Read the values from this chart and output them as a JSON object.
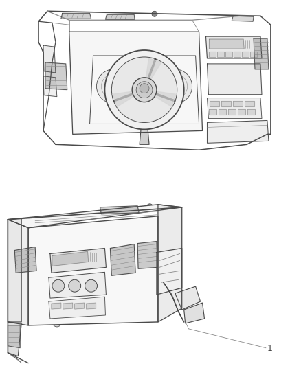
{
  "background_color": "#ffffff",
  "label_number": "1",
  "label_fontsize": 9,
  "fig_width": 4.38,
  "fig_height": 5.33,
  "dpi": 100,
  "line_color": "#4a4a4a",
  "light_color": "#888888",
  "fill_gray": "#d0d0d0",
  "fill_dark": "#a0a0a0"
}
